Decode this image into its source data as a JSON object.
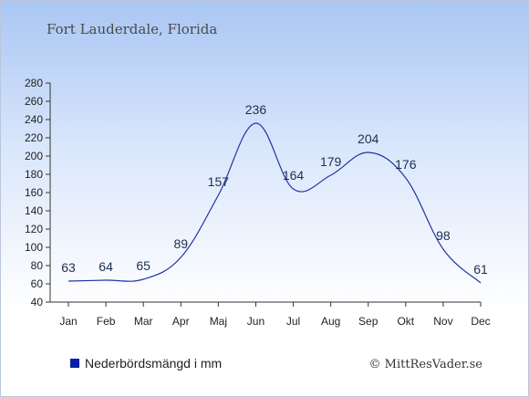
{
  "chart_data": {
    "type": "line",
    "title": "Fort Lauderdale, Florida",
    "categories": [
      "Jan",
      "Feb",
      "Mar",
      "Apr",
      "Maj",
      "Jun",
      "Jul",
      "Aug",
      "Sep",
      "Okt",
      "Nov",
      "Dec"
    ],
    "series": [
      {
        "name": "Nederbördsmängd i mm",
        "color": "#1f35a6",
        "values": [
          63,
          64,
          65,
          89,
          157,
          236,
          164,
          179,
          204,
          176,
          98,
          61
        ]
      }
    ],
    "ylim": [
      40,
      280
    ],
    "yticks": [
      40,
      60,
      80,
      100,
      120,
      140,
      160,
      180,
      200,
      220,
      240,
      260,
      280
    ],
    "grid": false,
    "legend": {
      "position": "bottom-left",
      "marker_color": "#0a1fa8"
    },
    "credit": "© MittResVader.se"
  }
}
